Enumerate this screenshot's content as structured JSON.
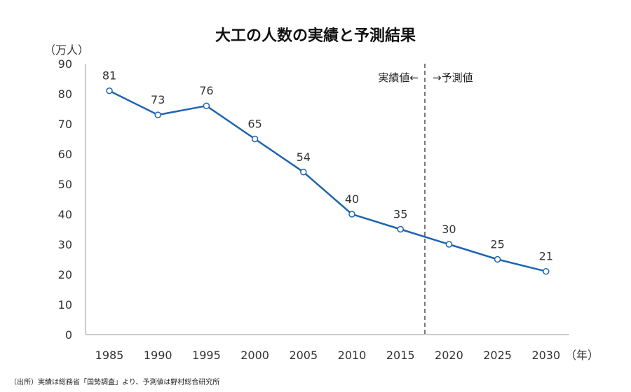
{
  "chart_data": {
    "type": "line",
    "title": "大工の人数の実績と予測結果",
    "ylabel": "（万人）",
    "xlabel": "（年）",
    "ylim": [
      0,
      90
    ],
    "yticks": [
      0,
      10,
      20,
      30,
      40,
      50,
      60,
      70,
      80,
      90
    ],
    "categories": [
      "1985",
      "1990",
      "1995",
      "2000",
      "2005",
      "2010",
      "2015",
      "2020",
      "2025",
      "2030"
    ],
    "series": [
      {
        "name": "大工の人数",
        "values": [
          81,
          73,
          76,
          65,
          54,
          40,
          35,
          30,
          25,
          21
        ],
        "color": "#1f64b0"
      }
    ],
    "divider_between": [
      "2015",
      "2020"
    ],
    "annotations": {
      "actual": "実績値←",
      "forecast": "→予測値"
    },
    "grid": false,
    "legend": "none",
    "source": "（出所）実績は総務省「国勢調査」より、予測値は野村総合研究所"
  }
}
